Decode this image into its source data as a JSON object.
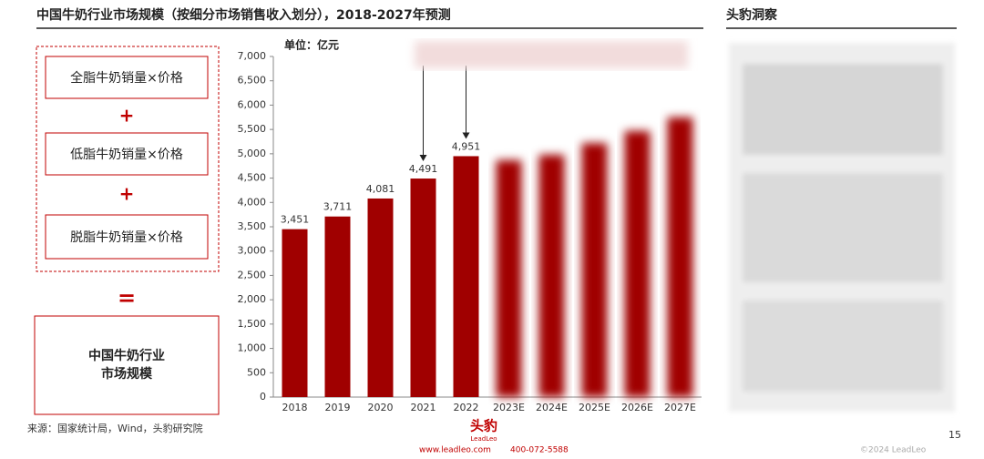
{
  "title": "中国牛奶行业市场规模（按细分市场销售收入划分），2018-2027年预测",
  "formula": {
    "items": [
      "全脂牛奶销量×价格",
      "低脂牛奶销量×价格",
      "脱脂牛奶销量×价格"
    ],
    "plus": "+",
    "equals": "=",
    "result": [
      "中国牛奶行业",
      "市场规模"
    ]
  },
  "insight": {
    "title": "头豹洞察"
  },
  "footer": {
    "source": "来源：国家统计局，Wind，头豹研究院",
    "logo": "头豹",
    "logo_sub": "LeadLeo",
    "website": "www.leadleo.com",
    "phone": "400-072-5588",
    "copyright": "©2024 LeadLeo",
    "page": "15"
  },
  "chart_data": {
    "type": "bar",
    "unit": "单位：亿元",
    "categories": [
      "2018",
      "2019",
      "2020",
      "2021",
      "2022",
      "2023E",
      "2024E",
      "2025E",
      "2026E",
      "2027E"
    ],
    "values": [
      3451,
      3711,
      4081,
      4491,
      4951,
      4870,
      4980,
      5220,
      5470,
      5750
    ],
    "value_labels": [
      "3,451",
      "3,711",
      "4,081",
      "4,491",
      "4,951",
      null,
      null,
      null,
      null,
      null
    ],
    "blurred": [
      false,
      false,
      false,
      false,
      false,
      true,
      true,
      true,
      true,
      true
    ],
    "color": "#a00000",
    "ylim": [
      0,
      7000
    ],
    "yticks": [
      0,
      500,
      {
        "value": 1000,
        "label": "1,000"
      },
      {
        "value": 1500,
        "label": "1,500"
      },
      {
        "value": 2000,
        "label": "2,000"
      },
      {
        "value": 2500,
        "label": "2,500"
      },
      {
        "value": 3000,
        "label": "3,000"
      },
      {
        "value": 3500,
        "label": "3,500"
      },
      {
        "value": 4000,
        "label": "4,000"
      },
      {
        "value": 4500,
        "label": "4,500"
      },
      {
        "value": 5000,
        "label": "5,000"
      },
      {
        "value": 5500,
        "label": "5,500"
      },
      {
        "value": 6000,
        "label": "6,000"
      },
      {
        "value": 6500,
        "label": "6,500"
      },
      {
        "value": 7000,
        "label": "7,000"
      }
    ]
  }
}
